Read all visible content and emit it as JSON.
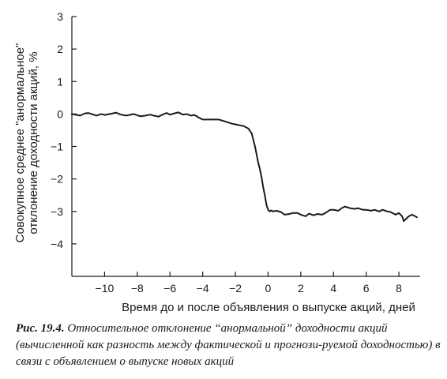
{
  "chart_data": {
    "type": "line",
    "xlabel": "Время до и после объявления о выпуске акций, дней",
    "ylabel": "Совокупное среднее \"анормальное\" отклонение доходности акций, %",
    "ylabel_lines": [
      "Совокупное среднее \"анормальное\"",
      "отклонение доходности акций, %"
    ],
    "xlim": [
      -12,
      9.3
    ],
    "ylim": [
      -5,
      3
    ],
    "x_ticks": [
      -10,
      -8,
      -6,
      -4,
      -2,
      0,
      2,
      4,
      6,
      8
    ],
    "x_tick_labels": [
      "−10",
      "−8",
      "−6",
      "−4",
      "−2",
      "0",
      "2",
      "4",
      "6",
      "8"
    ],
    "y_ticks": [
      3,
      2,
      1,
      0,
      -1,
      -2,
      -3,
      -4
    ],
    "y_tick_labels": [
      "3",
      "2",
      "1",
      "0",
      "−1",
      "−2",
      "−3",
      "−4"
    ],
    "grid": false,
    "series": [
      {
        "color": "#1a1a1a",
        "x": [
          -12,
          -11.5,
          -11.2,
          -11,
          -10.5,
          -10.2,
          -10,
          -9.5,
          -9.3,
          -9,
          -8.7,
          -8.5,
          -8.2,
          -8,
          -7.8,
          -7.5,
          -7.2,
          -7,
          -6.7,
          -6.5,
          -6.2,
          -6,
          -5.8,
          -5.5,
          -5.2,
          -5,
          -4.7,
          -4.5,
          -4.2,
          -4,
          -3.5,
          -3,
          -2.5,
          -2.2,
          -2,
          -1.7,
          -1.5,
          -1.2,
          -1,
          -0.8,
          -0.6,
          -0.5,
          -0.4,
          -0.3,
          -0.2,
          -0.1,
          0,
          0.1,
          0.2,
          0.3,
          0.5,
          0.8,
          1,
          1.3,
          1.5,
          1.8,
          2,
          2.3,
          2.5,
          2.8,
          3,
          3.3,
          3.5,
          3.8,
          4,
          4.3,
          4.5,
          4.7,
          5,
          5.3,
          5.5,
          5.8,
          6,
          6.3,
          6.5,
          6.8,
          7,
          7.3,
          7.5,
          7.8,
          8,
          8.2,
          8.3,
          8.5,
          8.6,
          8.8,
          9,
          9.1
        ],
        "y": [
          0,
          -0.05,
          0.02,
          0.03,
          -0.05,
          0,
          -0.03,
          0.02,
          0.04,
          -0.02,
          -0.05,
          -0.03,
          0,
          -0.04,
          -0.07,
          -0.05,
          -0.02,
          -0.05,
          -0.08,
          -0.03,
          0.03,
          -0.02,
          0.01,
          0.05,
          -0.02,
          0,
          -0.05,
          -0.03,
          -0.12,
          -0.17,
          -0.17,
          -0.17,
          -0.25,
          -0.3,
          -0.32,
          -0.35,
          -0.37,
          -0.45,
          -0.6,
          -1.0,
          -1.5,
          -1.7,
          -1.95,
          -2.25,
          -2.5,
          -2.8,
          -2.95,
          -3.0,
          -2.97,
          -3.0,
          -2.98,
          -3.02,
          -3.1,
          -3.08,
          -3.05,
          -3.05,
          -3.1,
          -3.15,
          -3.07,
          -3.12,
          -3.08,
          -3.1,
          -3.05,
          -2.95,
          -2.95,
          -2.98,
          -2.9,
          -2.85,
          -2.9,
          -2.92,
          -2.9,
          -2.95,
          -2.95,
          -2.98,
          -2.95,
          -3.0,
          -2.95,
          -3.0,
          -3.02,
          -3.1,
          -3.05,
          -3.15,
          -3.3,
          -3.2,
          -3.15,
          -3.1,
          -3.15,
          -3.18
        ]
      }
    ]
  },
  "caption": {
    "label": "Рис. 19.4.",
    "text": " Относительное отклонение “анормальной” доходности акций (вычисленной как разность между фактической и прогнози-руемой доходностью) в связи с объявлением о выпуске новых акций"
  }
}
